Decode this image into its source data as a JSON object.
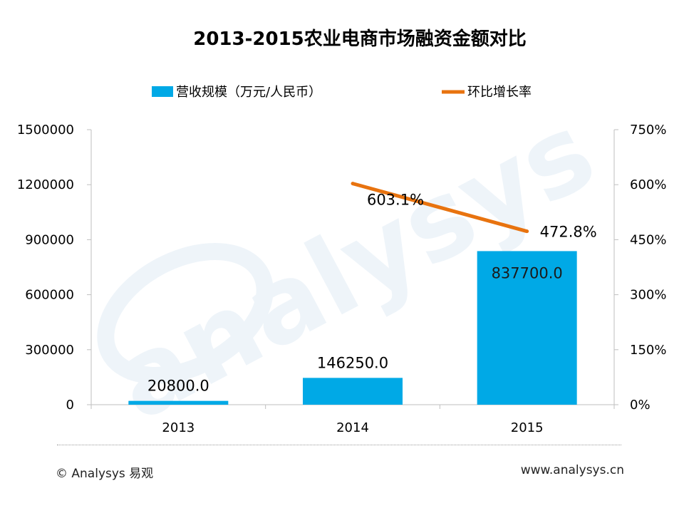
{
  "chart_data": {
    "type": "bar",
    "title": "2013-2015农业电商市场融资金额对比",
    "categories": [
      "2013",
      "2014",
      "2015"
    ],
    "series": [
      {
        "name": "营收规模（万元/人民币）",
        "kind": "bar",
        "axis": "left",
        "color": "#00a9e6",
        "values": [
          20800.0,
          146250.0,
          837700.0
        ],
        "labels": [
          "20800.0",
          "146250.0",
          "837700.0"
        ]
      },
      {
        "name": "环比增长率",
        "kind": "line",
        "axis": "right",
        "color": "#e8730f",
        "values": [
          null,
          603.1,
          472.8
        ],
        "labels": [
          "",
          "603.1%",
          "472.8%"
        ]
      }
    ],
    "y_left": {
      "min": 0,
      "max": 1500000,
      "ticks": [
        "0",
        "300000",
        "600000",
        "900000",
        "1200000",
        "1500000"
      ]
    },
    "y_right": {
      "min": 0,
      "max": 750,
      "ticks": [
        "0%",
        "150%",
        "300%",
        "450%",
        "600%",
        "750%"
      ]
    },
    "grid": false,
    "legend_position": "top"
  },
  "footer": {
    "copyright": "© Analysys 易观",
    "website": "www.analysys.cn"
  },
  "watermark": "analysys"
}
